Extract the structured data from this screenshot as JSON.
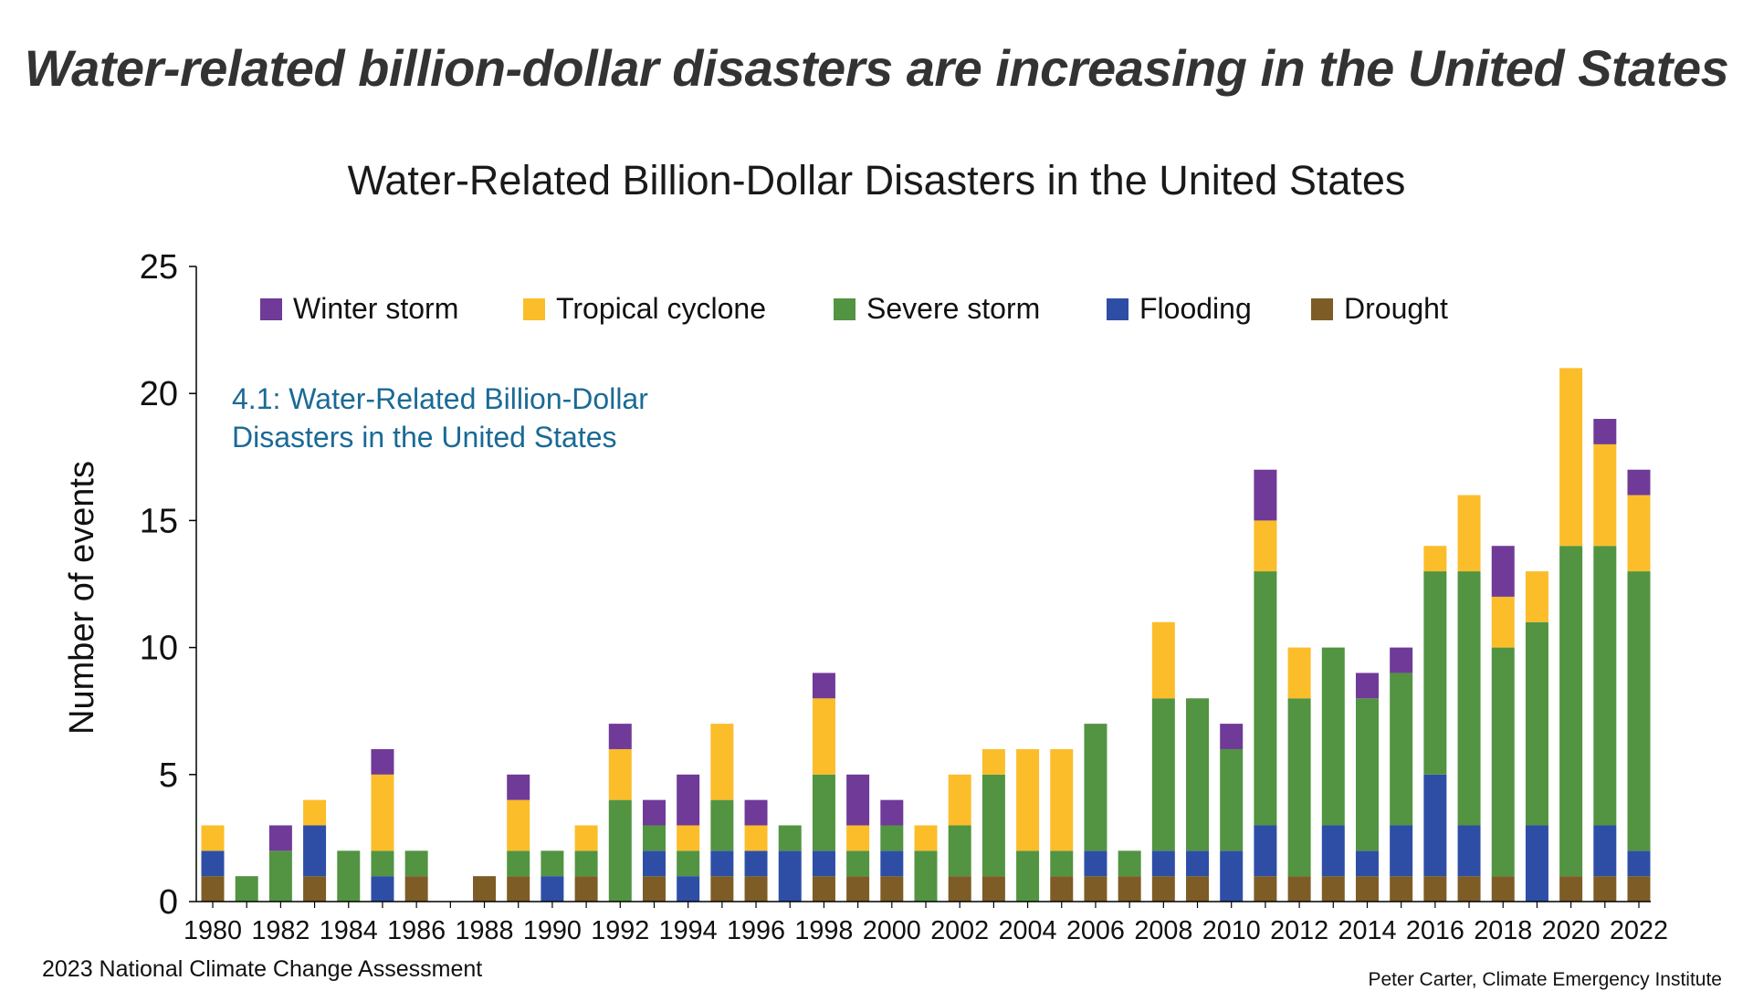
{
  "headline": "Water-related billion-dollar disasters are increasing in the United States",
  "footer": {
    "left": "2023 National Climate Change Assessment",
    "right": "Peter Carter, Climate Emergency Institute"
  },
  "chart_data": {
    "type": "bar",
    "stacked": true,
    "title": "Water-Related Billion-Dollar Disasters in the United States",
    "annotation": "4.1: Water-Related Billion-Dollar Disasters in the United States",
    "annotation_lines": [
      "4.1: Water-Related Billion-Dollar",
      "Disasters in the United States"
    ],
    "annotation_color": "#1a6a96",
    "xlabel": "",
    "ylabel": "Number of events",
    "ylim": [
      0,
      25
    ],
    "yticks": [
      0,
      5,
      10,
      15,
      20,
      25
    ],
    "grid": false,
    "legend_position": "top",
    "categories": [
      "1980",
      "1981",
      "1982",
      "1983",
      "1984",
      "1985",
      "1986",
      "1987",
      "1988",
      "1989",
      "1990",
      "1991",
      "1992",
      "1993",
      "1994",
      "1995",
      "1996",
      "1997",
      "1998",
      "1999",
      "2000",
      "2001",
      "2002",
      "2003",
      "2004",
      "2005",
      "2006",
      "2007",
      "2008",
      "2009",
      "2010",
      "2011",
      "2012",
      "2013",
      "2014",
      "2015",
      "2016",
      "2017",
      "2018",
      "2019",
      "2020",
      "2021",
      "2022"
    ],
    "xtick_labels": [
      "1980",
      "1982",
      "1984",
      "1986",
      "1988",
      "1990",
      "1992",
      "1994",
      "1996",
      "1998",
      "2000",
      "2002",
      "2004",
      "2006",
      "2008",
      "2010",
      "2012",
      "2014",
      "2016",
      "2018",
      "2020",
      "2022"
    ],
    "series": [
      {
        "name": "Drought",
        "color": "#7d5c25",
        "values": [
          1,
          0,
          0,
          1,
          0,
          0,
          1,
          0,
          1,
          1,
          0,
          1,
          0,
          1,
          0,
          1,
          1,
          0,
          1,
          1,
          1,
          0,
          1,
          1,
          0,
          1,
          1,
          1,
          1,
          1,
          0,
          1,
          1,
          1,
          1,
          1,
          1,
          1,
          1,
          0,
          1,
          1,
          1
        ]
      },
      {
        "name": "Flooding",
        "color": "#2e4ea6",
        "values": [
          1,
          0,
          0,
          2,
          0,
          1,
          0,
          0,
          0,
          0,
          1,
          0,
          0,
          1,
          1,
          1,
          1,
          2,
          1,
          0,
          1,
          0,
          0,
          0,
          0,
          0,
          1,
          0,
          1,
          1,
          2,
          2,
          0,
          2,
          1,
          2,
          4,
          2,
          0,
          3,
          0,
          2,
          1
        ]
      },
      {
        "name": "Severe storm",
        "color": "#529441",
        "values": [
          0,
          1,
          2,
          0,
          2,
          1,
          1,
          0,
          0,
          1,
          1,
          1,
          4,
          1,
          1,
          2,
          0,
          1,
          3,
          1,
          1,
          2,
          2,
          4,
          2,
          1,
          5,
          1,
          6,
          6,
          4,
          10,
          7,
          7,
          6,
          6,
          8,
          10,
          9,
          8,
          13,
          11,
          11
        ]
      },
      {
        "name": "Tropical cyclone",
        "color": "#fbbd2a",
        "values": [
          1,
          0,
          0,
          1,
          0,
          3,
          0,
          0,
          0,
          2,
          0,
          1,
          2,
          0,
          1,
          3,
          1,
          0,
          3,
          1,
          0,
          1,
          2,
          1,
          4,
          4,
          0,
          0,
          3,
          0,
          0,
          2,
          2,
          0,
          0,
          0,
          1,
          3,
          2,
          2,
          7,
          4,
          3
        ]
      },
      {
        "name": "Winter storm",
        "color": "#6f3a98",
        "values": [
          0,
          0,
          1,
          0,
          0,
          1,
          0,
          0,
          0,
          1,
          0,
          0,
          1,
          1,
          2,
          0,
          1,
          0,
          1,
          2,
          1,
          0,
          0,
          0,
          0,
          0,
          0,
          0,
          0,
          0,
          1,
          2,
          0,
          0,
          1,
          1,
          0,
          0,
          2,
          0,
          0,
          1,
          1
        ]
      }
    ],
    "legend_order": [
      "Winter storm",
      "Tropical cyclone",
      "Severe storm",
      "Flooding",
      "Drought"
    ]
  }
}
